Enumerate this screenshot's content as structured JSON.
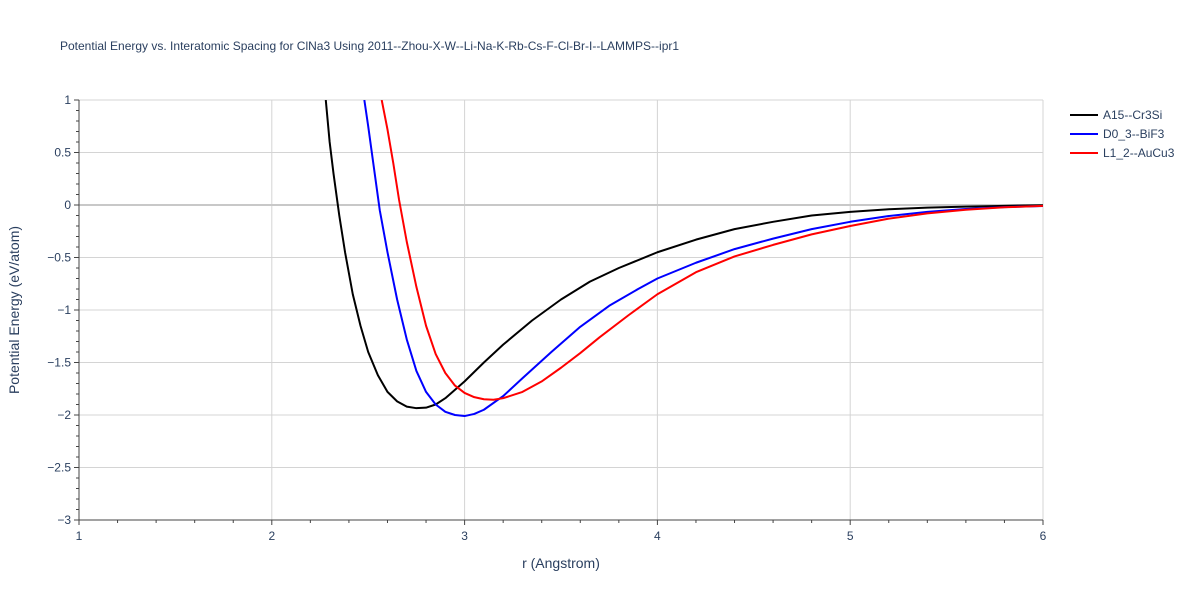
{
  "chart_data": {
    "type": "line",
    "title": "Potential Energy vs. Interatomic Spacing for ClNa3 Using 2011--Zhou-X-W--Li-Na-K-Rb-Cs-F-Cl-Br-I--LAMMPS--ipr1",
    "xlabel": "r (Angstrom)",
    "ylabel": "Potential Energy (eV/atom)",
    "xlim": [
      1,
      6
    ],
    "ylim": [
      -3,
      1
    ],
    "x_ticks": [
      1,
      2,
      3,
      4,
      5,
      6
    ],
    "x_tick_labels": [
      "1",
      "2",
      "3",
      "4",
      "5",
      "6"
    ],
    "y_ticks": [
      -3,
      -2.5,
      -2,
      -1.5,
      -1,
      -0.5,
      0,
      0.5,
      1
    ],
    "y_tick_labels": [
      "−3",
      "−2.5",
      "−2",
      "−1.5",
      "−1",
      "−0.5",
      "0",
      "0.5",
      "1"
    ],
    "grid": true,
    "legend_position": "top-right",
    "series": [
      {
        "name": "A15--Cr3Si",
        "color": "#000000",
        "points": [
          [
            2.28,
            1.0
          ],
          [
            2.3,
            0.6
          ],
          [
            2.32,
            0.3
          ],
          [
            2.35,
            -0.1
          ],
          [
            2.38,
            -0.45
          ],
          [
            2.42,
            -0.85
          ],
          [
            2.46,
            -1.15
          ],
          [
            2.5,
            -1.4
          ],
          [
            2.55,
            -1.62
          ],
          [
            2.6,
            -1.78
          ],
          [
            2.65,
            -1.87
          ],
          [
            2.7,
            -1.92
          ],
          [
            2.75,
            -1.935
          ],
          [
            2.8,
            -1.93
          ],
          [
            2.85,
            -1.9
          ],
          [
            2.9,
            -1.84
          ],
          [
            3.0,
            -1.68
          ],
          [
            3.1,
            -1.5
          ],
          [
            3.2,
            -1.33
          ],
          [
            3.35,
            -1.1
          ],
          [
            3.5,
            -0.9
          ],
          [
            3.65,
            -0.73
          ],
          [
            3.8,
            -0.6
          ],
          [
            4.0,
            -0.45
          ],
          [
            4.2,
            -0.33
          ],
          [
            4.4,
            -0.23
          ],
          [
            4.6,
            -0.16
          ],
          [
            4.8,
            -0.1
          ],
          [
            5.0,
            -0.065
          ],
          [
            5.2,
            -0.04
          ],
          [
            5.4,
            -0.025
          ],
          [
            5.6,
            -0.015
          ],
          [
            5.8,
            -0.008
          ],
          [
            6.0,
            -0.003
          ]
        ]
      },
      {
        "name": "D0_3--BiF3",
        "color": "#0000ff",
        "points": [
          [
            2.48,
            1.0
          ],
          [
            2.5,
            0.75
          ],
          [
            2.53,
            0.35
          ],
          [
            2.56,
            -0.05
          ],
          [
            2.6,
            -0.45
          ],
          [
            2.65,
            -0.9
          ],
          [
            2.7,
            -1.28
          ],
          [
            2.75,
            -1.58
          ],
          [
            2.8,
            -1.78
          ],
          [
            2.85,
            -1.9
          ],
          [
            2.9,
            -1.97
          ],
          [
            2.95,
            -2.0
          ],
          [
            3.0,
            -2.01
          ],
          [
            3.05,
            -1.99
          ],
          [
            3.1,
            -1.95
          ],
          [
            3.2,
            -1.82
          ],
          [
            3.3,
            -1.65
          ],
          [
            3.45,
            -1.4
          ],
          [
            3.6,
            -1.16
          ],
          [
            3.75,
            -0.96
          ],
          [
            3.9,
            -0.8
          ],
          [
            4.0,
            -0.7
          ],
          [
            4.2,
            -0.55
          ],
          [
            4.4,
            -0.42
          ],
          [
            4.6,
            -0.32
          ],
          [
            4.8,
            -0.23
          ],
          [
            5.0,
            -0.16
          ],
          [
            5.2,
            -0.105
          ],
          [
            5.4,
            -0.065
          ],
          [
            5.6,
            -0.038
          ],
          [
            5.8,
            -0.02
          ],
          [
            6.0,
            -0.01
          ]
        ]
      },
      {
        "name": "L1_2--AuCu3",
        "color": "#ff0000",
        "points": [
          [
            2.57,
            1.0
          ],
          [
            2.6,
            0.72
          ],
          [
            2.63,
            0.4
          ],
          [
            2.66,
            0.05
          ],
          [
            2.7,
            -0.35
          ],
          [
            2.75,
            -0.78
          ],
          [
            2.8,
            -1.15
          ],
          [
            2.85,
            -1.42
          ],
          [
            2.9,
            -1.6
          ],
          [
            2.95,
            -1.72
          ],
          [
            3.0,
            -1.79
          ],
          [
            3.05,
            -1.83
          ],
          [
            3.1,
            -1.85
          ],
          [
            3.15,
            -1.855
          ],
          [
            3.2,
            -1.84
          ],
          [
            3.3,
            -1.78
          ],
          [
            3.4,
            -1.68
          ],
          [
            3.5,
            -1.55
          ],
          [
            3.6,
            -1.41
          ],
          [
            3.7,
            -1.26
          ],
          [
            3.85,
            -1.05
          ],
          [
            4.0,
            -0.85
          ],
          [
            4.2,
            -0.64
          ],
          [
            4.4,
            -0.49
          ],
          [
            4.6,
            -0.38
          ],
          [
            4.8,
            -0.28
          ],
          [
            5.0,
            -0.2
          ],
          [
            5.2,
            -0.13
          ],
          [
            5.4,
            -0.08
          ],
          [
            5.6,
            -0.045
          ],
          [
            5.8,
            -0.022
          ],
          [
            6.0,
            -0.008
          ]
        ]
      }
    ]
  }
}
